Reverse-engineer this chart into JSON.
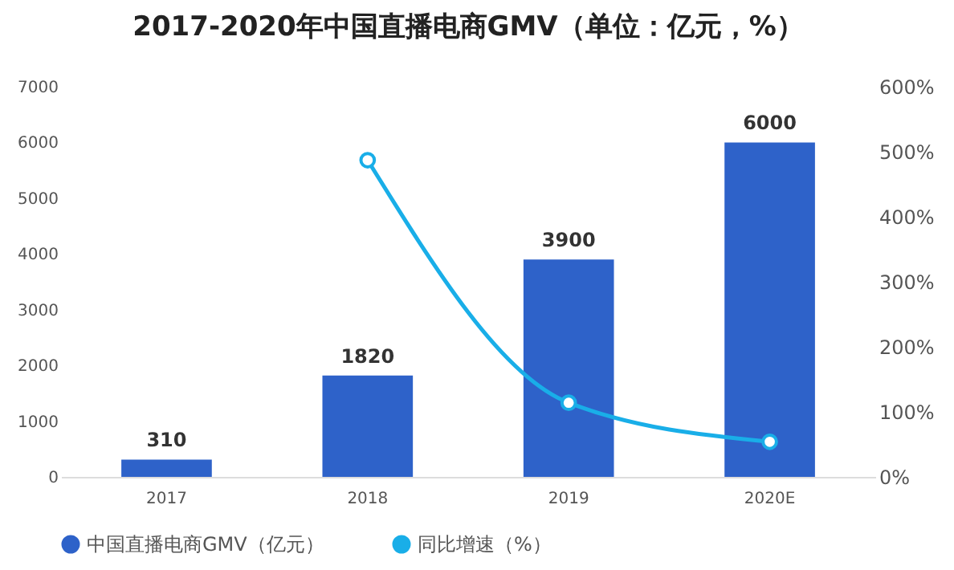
{
  "chart_data": {
    "type": "bar",
    "title": "2017-2020年中国直播电商GMV（单位：亿元，%）",
    "categories": [
      "2017",
      "2018",
      "2019",
      "2020E"
    ],
    "series": [
      {
        "name": "中国直播电商GMV（亿元）",
        "color": "#2e62c9",
        "values": [
          310,
          1820,
          3900,
          6000
        ],
        "value_labels": [
          "310",
          "1820",
          "3900",
          "6000"
        ]
      },
      {
        "name": "同比增速（%）",
        "type": "line",
        "axis": "y2",
        "color": "#19aee8",
        "values": [
          null,
          487,
          114,
          54
        ],
        "marker": "circle",
        "line_style": "solid"
      }
    ],
    "ylim": [
      0,
      7000
    ],
    "yticks": [
      0,
      1000,
      2000,
      3000,
      4000,
      5000,
      6000,
      7000
    ],
    "y2lim": [
      0,
      600
    ],
    "y2ticks": [
      {
        "value": 0,
        "label": "0%"
      },
      {
        "value": 100,
        "label": "100%"
      },
      {
        "value": 200,
        "label": "200%"
      },
      {
        "value": 300,
        "label": "300%"
      },
      {
        "value": 400,
        "label": "400%"
      },
      {
        "value": 500,
        "label": "500%"
      },
      {
        "value": 600,
        "label": "600%"
      }
    ],
    "grid": false,
    "legend": "bottom"
  }
}
